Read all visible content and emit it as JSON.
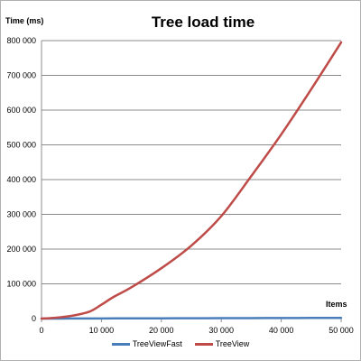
{
  "chart_data": {
    "type": "line",
    "title": "Tree load time",
    "xlabel": "Items",
    "ylabel": "Time (ms)",
    "xlim": [
      0,
      50000
    ],
    "ylim": [
      0,
      800000
    ],
    "x_ticks": [
      0,
      10000,
      20000,
      30000,
      40000,
      50000
    ],
    "x_tick_labels": [
      "0",
      "10 000",
      "20 000",
      "30 000",
      "40 000",
      "50 000"
    ],
    "y_ticks": [
      0,
      100000,
      200000,
      300000,
      400000,
      500000,
      600000,
      700000,
      800000
    ],
    "y_tick_labels": [
      "0",
      "100 000",
      "200 000",
      "300 000",
      "400 000",
      "500 000",
      "600 000",
      "700 000",
      "800 000"
    ],
    "grid": true,
    "legend_position": "bottom",
    "series": [
      {
        "name": "TreeViewFast",
        "color": "#4a7ebb",
        "x": [
          0,
          5000,
          10000,
          15000,
          20000,
          25000,
          30000,
          35000,
          40000,
          45000,
          50000
        ],
        "y": [
          0,
          200,
          400,
          600,
          800,
          1000,
          1200,
          1400,
          1600,
          1800,
          2000
        ]
      },
      {
        "name": "TreeView",
        "color": "#be4b48",
        "x": [
          0,
          2000,
          5000,
          8000,
          10000,
          12000,
          15000,
          20000,
          25000,
          30000,
          35000,
          40000,
          45000,
          50000
        ],
        "y": [
          0,
          2000,
          8000,
          20000,
          40000,
          62000,
          90000,
          145000,
          210000,
          295000,
          410000,
          530000,
          660000,
          795000
        ]
      }
    ]
  }
}
